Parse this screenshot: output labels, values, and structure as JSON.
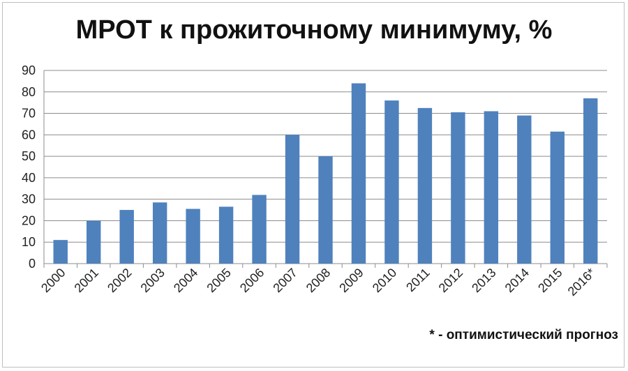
{
  "chart_data": {
    "type": "bar",
    "title": "МРОТ к прожиточному минимуму, %",
    "xlabel": "",
    "ylabel": "",
    "ylim": [
      0,
      90
    ],
    "yticks": [
      0,
      10,
      20,
      30,
      40,
      50,
      60,
      70,
      80,
      90
    ],
    "grid": true,
    "categories": [
      "2000",
      "2001",
      "2002",
      "2003",
      "2004",
      "2005",
      "2006",
      "2007",
      "2008",
      "2009",
      "2010",
      "2011",
      "2012",
      "2013",
      "2014",
      "2015",
      "2016*"
    ],
    "values": [
      11,
      20,
      25,
      28.5,
      25.5,
      26.5,
      32,
      60,
      50,
      84,
      76,
      72.5,
      70.5,
      71,
      69,
      61.5,
      77
    ],
    "bar_color": "#4f81bd",
    "footnote": "* - оптимистический прогноз"
  }
}
